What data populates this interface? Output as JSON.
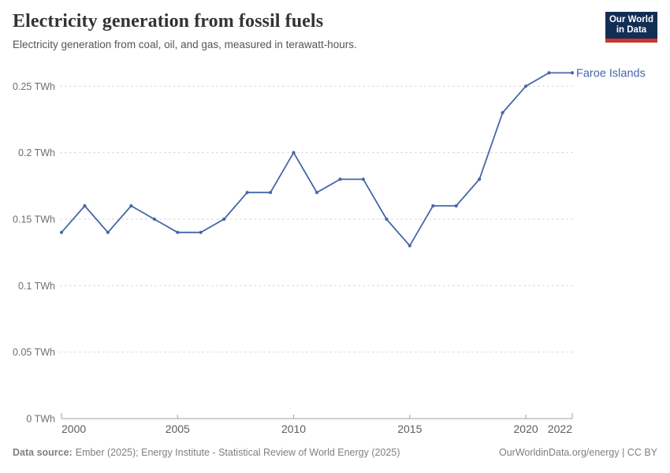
{
  "chart_data": {
    "type": "line",
    "title": "Electricity generation from fossil fuels",
    "subtitle": "Electricity generation from coal, oil, and gas, measured in terawatt-hours.",
    "unit": "TWh",
    "x": [
      2000,
      2001,
      2002,
      2003,
      2004,
      2005,
      2006,
      2007,
      2008,
      2009,
      2010,
      2011,
      2012,
      2013,
      2014,
      2015,
      2016,
      2017,
      2018,
      2019,
      2020,
      2021,
      2022
    ],
    "series": [
      {
        "name": "Faroe Islands",
        "color": "#4766A8",
        "values": [
          0.14,
          0.16,
          0.14,
          0.16,
          0.15,
          0.14,
          0.14,
          0.15,
          0.17,
          0.17,
          0.2,
          0.17,
          0.18,
          0.18,
          0.15,
          0.13,
          0.16,
          0.16,
          0.18,
          0.23,
          0.25,
          0.26,
          0.26
        ]
      }
    ],
    "xlim": [
      2000,
      2022
    ],
    "ylim": [
      0,
      0.26
    ],
    "x_ticks": [
      {
        "year": 2000,
        "label": "2000",
        "anchor": "start"
      },
      {
        "year": 2005,
        "label": "2005",
        "anchor": "middle"
      },
      {
        "year": 2010,
        "label": "2010",
        "anchor": "middle"
      },
      {
        "year": 2015,
        "label": "2015",
        "anchor": "middle"
      },
      {
        "year": 2020,
        "label": "2020",
        "anchor": "middle"
      },
      {
        "year": 2022,
        "label": "2022",
        "anchor": "end"
      }
    ],
    "y_ticks": [
      {
        "value": 0,
        "label": "0 TWh"
      },
      {
        "value": 0.05,
        "label": "0.05 TWh"
      },
      {
        "value": 0.1,
        "label": "0.1 TWh"
      },
      {
        "value": 0.15,
        "label": "0.15 TWh"
      },
      {
        "value": 0.2,
        "label": "0.2 TWh"
      },
      {
        "value": 0.25,
        "label": "0.25 TWh"
      }
    ],
    "grid": "horizontal-dashed",
    "legend": "entity-label-at-line-end"
  },
  "header": {
    "logo": {
      "line1": "Our World",
      "line2": "in Data"
    }
  },
  "footer": {
    "source_label": "Data source:",
    "source_text": "Ember (2025); Energy Institute - Statistical Review of World Energy (2025)",
    "credit": "OurWorldinData.org/energy | CC BY"
  },
  "colors": {
    "accent": "#4766A8",
    "grid": "#DBDBDB",
    "axis": "#A1A1A1",
    "y_tick_text": "#6F6F6F",
    "x_tick_text": "#5D5D5D",
    "logo_bg": "#132E54",
    "logo_stripe": "#D0342C",
    "footer_text": "#808080"
  }
}
